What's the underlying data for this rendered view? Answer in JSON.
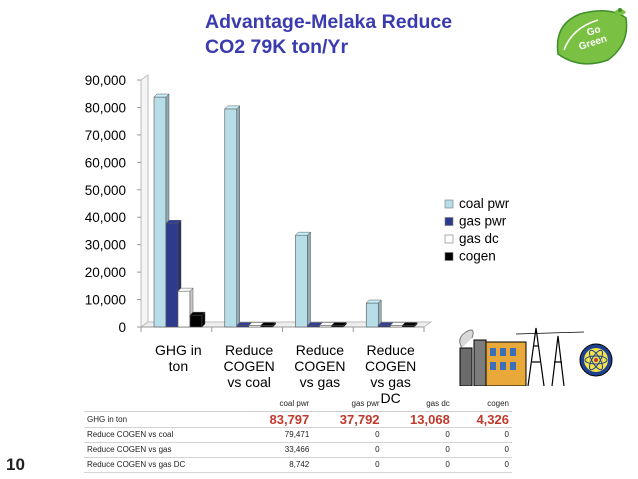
{
  "slide": {
    "title_line1": "Advantage-Melaka Reduce",
    "title_line2": "CO2 79K ton/Yr",
    "page_number": "10",
    "logo_text_1": "Go",
    "logo_text_2": "Green"
  },
  "chart_data": {
    "type": "bar",
    "style": "3d clustered column",
    "categories": [
      [
        "GHG in",
        "ton"
      ],
      [
        "Reduce",
        "COGEN",
        "vs coal"
      ],
      [
        "Reduce",
        "COGEN",
        "vs gas"
      ],
      [
        "Reduce",
        "COGEN",
        "vs gas",
        "DC"
      ]
    ],
    "series": [
      {
        "name": "coal pwr",
        "values": [
          83797,
          79471,
          33466,
          8742
        ]
      },
      {
        "name": "gas pwr",
        "values": [
          37792,
          0,
          0,
          0
        ]
      },
      {
        "name": "gas dc",
        "values": [
          13068,
          0,
          0,
          0
        ]
      },
      {
        "name": "cogen",
        "values": [
          4326,
          0,
          0,
          0
        ]
      }
    ],
    "ylim": [
      0,
      90000
    ],
    "yticks": [
      "0",
      "10,000",
      "20,000",
      "30,000",
      "40,000",
      "50,000",
      "60,000",
      "70,000",
      "80,000",
      "90,000"
    ],
    "legend_position": "right",
    "grid": false,
    "colors": {
      "coal pwr": "#b7dde8",
      "gas pwr": "#2e3a8c",
      "gas dc": "#ffffff",
      "cogen": "#000000"
    }
  },
  "table": {
    "headers": [
      "",
      "coal pwr",
      "gas pwr",
      "gas dc",
      "cogen"
    ],
    "rows": [
      [
        "GHG in ton",
        "83,797",
        "37,792",
        "13,068",
        "4,326"
      ],
      [
        "Reduce COGEN vs coal",
        "79,471",
        "0",
        "0",
        "0"
      ],
      [
        "Reduce COGEN vs gas",
        "33,466",
        "0",
        "0",
        "0"
      ],
      [
        "Reduce COGEN vs gas DC",
        "8,742",
        "0",
        "0",
        "0"
      ]
    ]
  }
}
